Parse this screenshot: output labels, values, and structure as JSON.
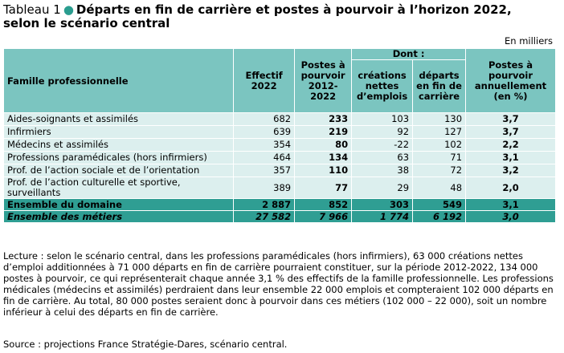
{
  "header": {
    "label": "Tableau 1",
    "title_line1": "Départs en fin de carrière et postes à pourvoir à l’horizon 2022,",
    "title_line2": "selon le scénario central",
    "unit": "En milliers"
  },
  "table": {
    "col_family": "Famille professionnelle",
    "col_effectif": "Effectif 2022",
    "col_postes": "Postes à pourvoir 2012-2022",
    "col_dont": "Dont :",
    "col_creations": "créations nettes d’emplois",
    "col_departs": "départs en fin de carrière",
    "col_annuel": "Postes à pourvoir annuellement (en %)",
    "rows": [
      {
        "name": "Aides-soignants et assimilés",
        "effectif": "682",
        "postes": "233",
        "creations": "103",
        "departs": "130",
        "annuel": "3,7"
      },
      {
        "name": "Infirmiers",
        "effectif": "639",
        "postes": "219",
        "creations": "92",
        "departs": "127",
        "annuel": "3,7"
      },
      {
        "name": "Médecins et assimilés",
        "effectif": "354",
        "postes": "80",
        "creations": "-22",
        "departs": "102",
        "annuel": "2,2"
      },
      {
        "name": "Professions paramédicales (hors infirmiers)",
        "effectif": "464",
        "postes": "134",
        "creations": "63",
        "departs": "71",
        "annuel": "3,1"
      },
      {
        "name": "Prof. de l’action sociale et de l’orientation",
        "effectif": "357",
        "postes": "110",
        "creations": "38",
        "departs": "72",
        "annuel": "3,2"
      },
      {
        "name": "Prof. de l’action culturelle et sportive, surveillants",
        "effectif": "389",
        "postes": "77",
        "creations": "29",
        "departs": "48",
        "annuel": "2,0"
      }
    ],
    "total": {
      "name": "Ensemble du domaine",
      "effectif": "2 887",
      "postes": "852",
      "creations": "303",
      "departs": "549",
      "annuel": "3,1"
    },
    "all": {
      "name": "Ensemble des métiers",
      "effectif": "27 582",
      "postes": "7 966",
      "creations": "1 774",
      "departs": "6 192",
      "annuel": "3,0"
    }
  },
  "note": "Lecture : selon le scénario central, dans les professions paramédicales (hors infirmiers), 63 000 créations nettes d’emploi additionnées à 71 000 départs en fin de carrière pourraient constituer, sur la période 2012-2022, 134 000 postes à pourvoir, ce qui représenterait chaque année 3,1 % des effectifs de la famille professionnelle. Les professions médicales (médecins et assimilés) perdraient dans leur ensemble 22 000 emplois et compteraient 102 000 départs en fin de carrière. Au total, 80 000 postes seraient donc à pourvoir dans ces métiers (102 000 – 22 000), soit un nombre inférieur à celui des départs en fin de carrière.",
  "source": "Source : projections France Stratégie-Dares, scénario central."
}
